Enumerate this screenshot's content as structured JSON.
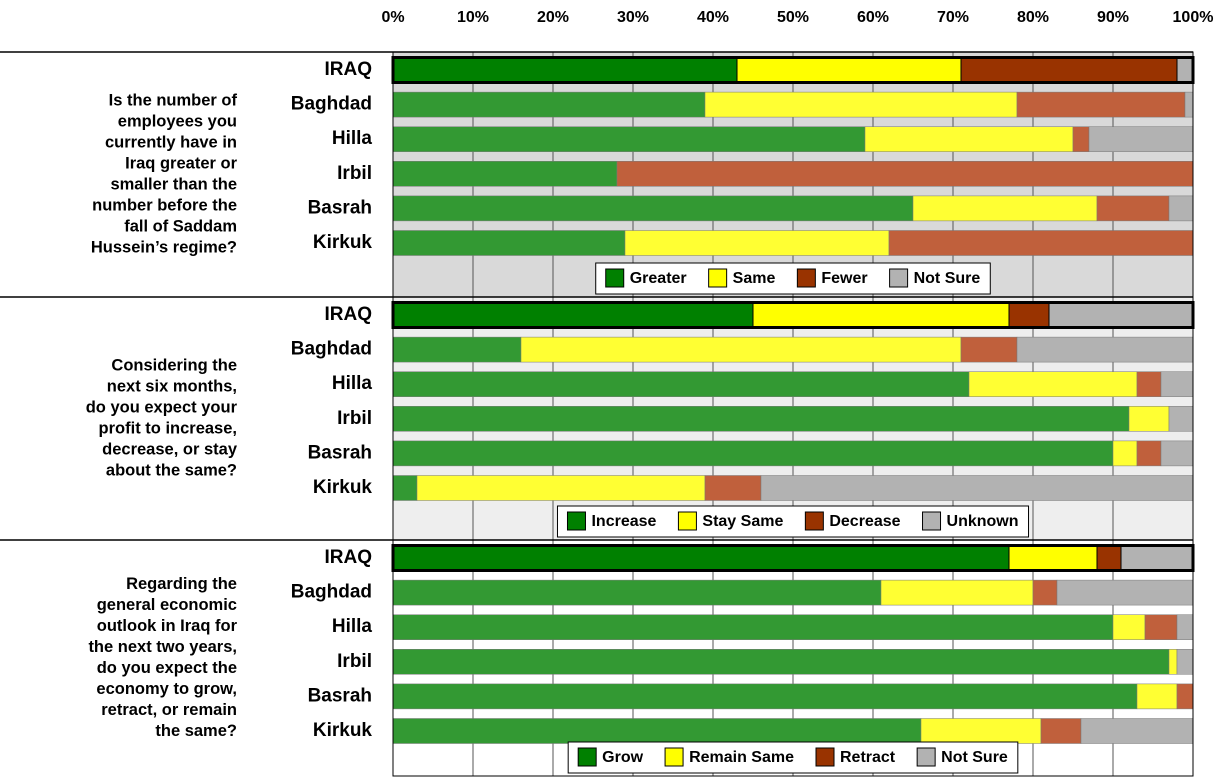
{
  "chart_data": [
    {
      "type": "bar",
      "orientation": "horizontal",
      "stacked": true,
      "background": "#d9d9d9",
      "grid": true,
      "question": [
        "Is the number of",
        "employees you",
        "currently have in",
        "Iraq greater or",
        "smaller than the",
        "number before the",
        "fall of Saddam",
        "Hussein’s regime?"
      ],
      "categories": [
        "IRAQ",
        "Baghdad",
        "Hilla",
        "Irbil",
        "Basrah",
        "Kirkuk"
      ],
      "xlim": [
        0,
        100
      ],
      "xticks": [
        {
          "value": 0,
          "label": "0%"
        },
        {
          "value": 10,
          "label": "10%"
        },
        {
          "value": 20,
          "label": "20%"
        },
        {
          "value": 30,
          "label": "30%"
        },
        {
          "value": 40,
          "label": "40%"
        },
        {
          "value": 50,
          "label": "50%"
        },
        {
          "value": 60,
          "label": "60%"
        },
        {
          "value": 70,
          "label": "70%"
        },
        {
          "value": 80,
          "label": "80%"
        },
        {
          "value": 90,
          "label": "90%"
        },
        {
          "value": 100,
          "label": "100%"
        }
      ],
      "series": [
        {
          "name": "Greater",
          "color": "#008000",
          "row_color": "#339933",
          "values": [
            43,
            39,
            59,
            28,
            65,
            29
          ]
        },
        {
          "name": "Same",
          "color": "#ffff00",
          "row_color": "#ffff33",
          "values": [
            28,
            39,
            26,
            0,
            23,
            33
          ]
        },
        {
          "name": "Fewer",
          "color": "#993300",
          "row_color": "#c0603c",
          "values": [
            27,
            21,
            2,
            72,
            9,
            38
          ]
        },
        {
          "name": "Not Sure",
          "color": "#b2b2b2",
          "row_color": "#b2b2b2",
          "values": [
            2,
            1,
            13,
            0,
            3,
            0
          ]
        }
      ]
    },
    {
      "type": "bar",
      "orientation": "horizontal",
      "stacked": true,
      "background": "#eeeeee",
      "grid": true,
      "question": [
        "Considering the",
        "next six months,",
        "do you expect your",
        "profit to increase,",
        "decrease, or stay",
        "about the same?"
      ],
      "categories": [
        "IRAQ",
        "Baghdad",
        "Hilla",
        "Irbil",
        "Basrah",
        "Kirkuk"
      ],
      "xlim": [
        0,
        100
      ],
      "xticks": [
        0,
        10,
        20,
        30,
        40,
        50,
        60,
        70,
        80,
        90,
        100
      ],
      "series": [
        {
          "name": "Increase",
          "color": "#008000",
          "row_color": "#339933",
          "values": [
            45,
            16,
            72,
            92,
            90,
            3
          ]
        },
        {
          "name": "Stay Same",
          "color": "#ffff00",
          "row_color": "#ffff33",
          "values": [
            32,
            55,
            21,
            5,
            3,
            36
          ]
        },
        {
          "name": "Decrease",
          "color": "#993300",
          "row_color": "#c0603c",
          "values": [
            5,
            7,
            3,
            0,
            3,
            7
          ]
        },
        {
          "name": "Unknown",
          "color": "#b2b2b2",
          "row_color": "#b2b2b2",
          "values": [
            18,
            22,
            4,
            3,
            4,
            54
          ]
        }
      ]
    },
    {
      "type": "bar",
      "orientation": "horizontal",
      "stacked": true,
      "background": "#ffffff",
      "grid": true,
      "question": [
        "Regarding the",
        "general economic",
        "outlook in Iraq for",
        "the next two years,",
        "do you expect the",
        "economy to grow,",
        "retract, or remain",
        "the same?"
      ],
      "categories": [
        "IRAQ",
        "Baghdad",
        "Hilla",
        "Irbil",
        "Basrah",
        "Kirkuk"
      ],
      "xlim": [
        0,
        100
      ],
      "xticks": [
        0,
        10,
        20,
        30,
        40,
        50,
        60,
        70,
        80,
        90,
        100
      ],
      "series": [
        {
          "name": "Grow",
          "color": "#008000",
          "row_color": "#339933",
          "values": [
            77,
            61,
            90,
            97,
            93,
            66
          ]
        },
        {
          "name": "Remain Same",
          "color": "#ffff00",
          "row_color": "#ffff33",
          "values": [
            11,
            19,
            4,
            1,
            5,
            15
          ]
        },
        {
          "name": "Retract",
          "color": "#993300",
          "row_color": "#c0603c",
          "values": [
            3,
            3,
            4,
            0,
            2,
            5
          ]
        },
        {
          "name": "Not Sure",
          "color": "#b2b2b2",
          "row_color": "#b2b2b2",
          "values": [
            9,
            17,
            2,
            2,
            0,
            14
          ]
        }
      ]
    }
  ]
}
